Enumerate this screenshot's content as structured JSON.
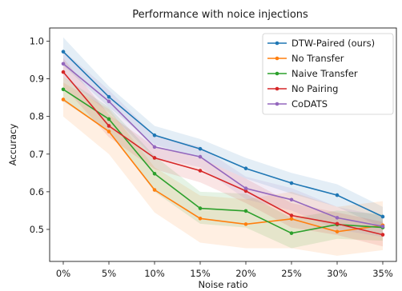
{
  "chart_data": {
    "type": "line",
    "title": "Performance with noice injections",
    "xlabel": "Noise ratio",
    "ylabel": "Accuracy",
    "categories": [
      "0%",
      "5%",
      "10%",
      "15%",
      "20%",
      "25%",
      "30%",
      "35%"
    ],
    "ylim": [
      0.415,
      1.035
    ],
    "yticks": [
      0.5,
      0.6,
      0.7,
      0.8,
      0.9,
      1.0
    ],
    "ytick_labels": [
      "0.5",
      "0.6",
      "0.7",
      "0.8",
      "0.9",
      "1.0"
    ],
    "grid": false,
    "legend_position": "top-right",
    "series": [
      {
        "name": "DTW-Paired (ours)",
        "color": "#1f77b4",
        "values": [
          0.972,
          0.852,
          0.75,
          0.714,
          0.662,
          0.623,
          0.591,
          0.534
        ],
        "lower": [
          0.935,
          0.825,
          0.725,
          0.69,
          0.635,
          0.595,
          0.56,
          0.505
        ],
        "upper": [
          1.01,
          0.88,
          0.775,
          0.74,
          0.69,
          0.65,
          0.62,
          0.56
        ]
      },
      {
        "name": "No Transfer",
        "color": "#ff7f0e",
        "values": [
          0.845,
          0.76,
          0.605,
          0.529,
          0.514,
          0.528,
          0.494,
          0.511
        ],
        "lower": [
          0.8,
          0.7,
          0.545,
          0.465,
          0.45,
          0.45,
          0.43,
          0.445
        ],
        "upper": [
          0.89,
          0.82,
          0.665,
          0.59,
          0.58,
          0.6,
          0.56,
          0.575
        ]
      },
      {
        "name": "Naive Transfer",
        "color": "#2ca02c",
        "values": [
          0.872,
          0.793,
          0.648,
          0.556,
          0.549,
          0.49,
          0.513,
          0.505
        ],
        "lower": [
          0.84,
          0.76,
          0.6,
          0.515,
          0.505,
          0.45,
          0.475,
          0.47
        ],
        "upper": [
          0.905,
          0.825,
          0.695,
          0.6,
          0.595,
          0.53,
          0.55,
          0.54
        ]
      },
      {
        "name": "No Pairing",
        "color": "#d62728",
        "values": [
          0.918,
          0.775,
          0.69,
          0.656,
          0.602,
          0.537,
          0.515,
          0.486
        ],
        "lower": [
          0.88,
          0.745,
          0.66,
          0.625,
          0.57,
          0.505,
          0.485,
          0.455
        ],
        "upper": [
          0.955,
          0.805,
          0.72,
          0.69,
          0.635,
          0.57,
          0.545,
          0.52
        ]
      },
      {
        "name": "CoDATS",
        "color": "#9467bd",
        "values": [
          0.94,
          0.84,
          0.719,
          0.693,
          0.609,
          0.579,
          0.531,
          0.508
        ],
        "lower": [
          0.905,
          0.81,
          0.69,
          0.665,
          0.58,
          0.55,
          0.5,
          0.48
        ],
        "upper": [
          0.975,
          0.87,
          0.75,
          0.72,
          0.64,
          0.61,
          0.56,
          0.535
        ]
      }
    ]
  }
}
